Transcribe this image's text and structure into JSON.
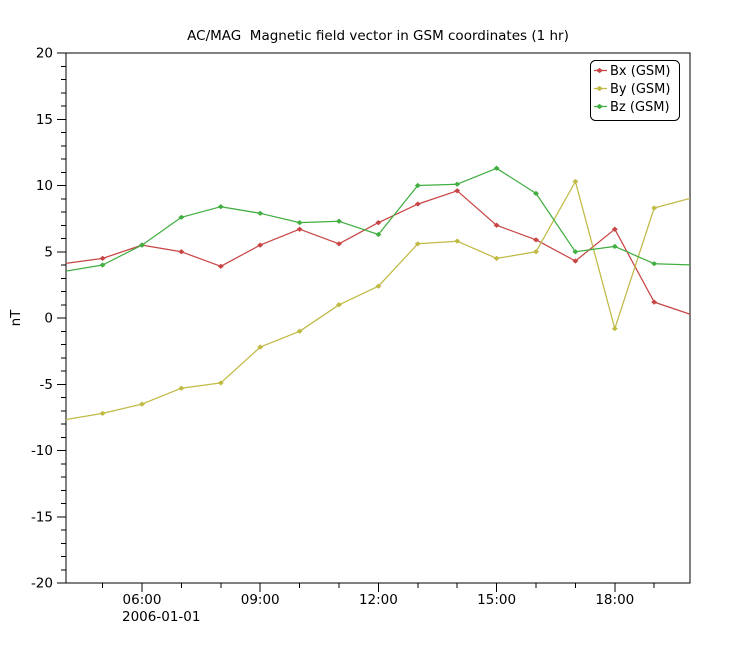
{
  "title": "AC/MAG  Magnetic field vector in GSM coordinates (1 hr)",
  "chart_data": {
    "type": "line",
    "title": "AC/MAG  Magnetic field vector in GSM coordinates (1 hr)",
    "ylabel": "nT",
    "ylim": [
      -20,
      20
    ],
    "y_major_tick_step": 5,
    "y_minor_tick_step": 1,
    "y_major_tick_labels": [
      "20",
      "15",
      "10",
      "5",
      "0",
      "-5",
      "-10",
      "-15",
      "-20"
    ],
    "x_start_hour": 4.07,
    "x_end_hour": 19.91,
    "x_minor_tick_step_hours": 1,
    "x_major_ticks": [
      {
        "hour": 6,
        "label": "06:00"
      },
      {
        "hour": 9,
        "label": "09:00"
      },
      {
        "hour": 12,
        "label": "12:00"
      },
      {
        "hour": 15,
        "label": "15:00"
      },
      {
        "hour": 18,
        "label": "18:00"
      }
    ],
    "x_date_label": "2006-01-01",
    "grid": false,
    "legend_position": "top-right",
    "x_hours": [
      4,
      5,
      6,
      7,
      8,
      9,
      10,
      11,
      12,
      13,
      14,
      15,
      16,
      17,
      18,
      19,
      20
    ],
    "series": [
      {
        "name": "Bx (GSM)",
        "color": "#c84545",
        "values": [
          4.1,
          4.5,
          5.5,
          5.0,
          3.9,
          5.5,
          6.7,
          5.6,
          7.2,
          8.6,
          9.6,
          7.0,
          5.9,
          4.3,
          6.7,
          1.2,
          0.2
        ]
      },
      {
        "name": "By (GSM)",
        "color": "#c0ba45",
        "values": [
          -7.7,
          -7.2,
          -6.5,
          -5.3,
          -4.9,
          -2.2,
          -1.0,
          1.0,
          2.4,
          5.6,
          5.8,
          4.5,
          5.0,
          10.3,
          -0.8,
          8.3,
          9.1
        ]
      },
      {
        "name": "Bz (GSM)",
        "color": "#41ae41",
        "values": [
          3.5,
          4.0,
          5.5,
          7.6,
          8.4,
          7.9,
          7.2,
          7.3,
          6.3,
          10.0,
          10.1,
          11.3,
          9.4,
          5.0,
          5.4,
          4.1,
          4.0
        ]
      }
    ],
    "frame_color": "#000000",
    "background_color": "#ffffff",
    "text_color": "#000000"
  }
}
